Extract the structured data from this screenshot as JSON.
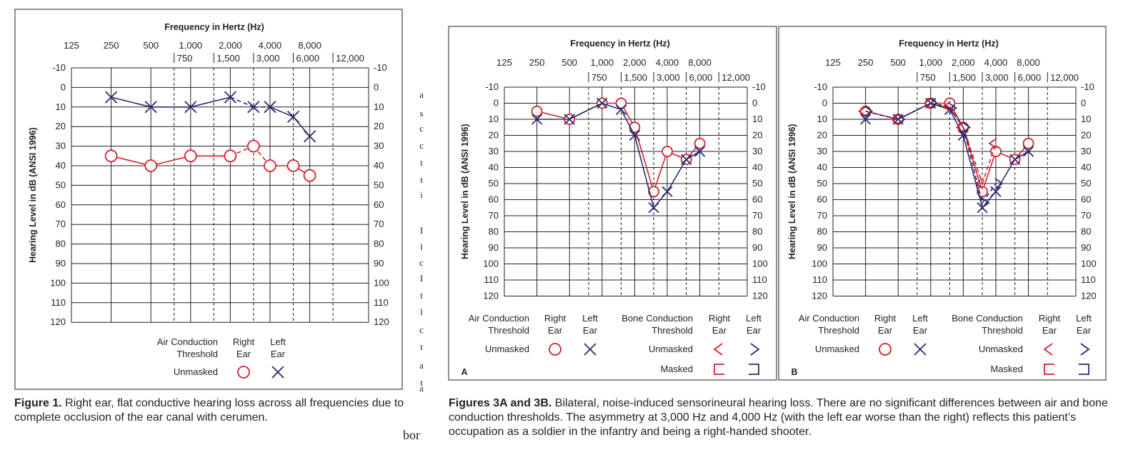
{
  "chart_data": [
    {
      "type": "line",
      "panel_label": "",
      "title": "Frequency in Hertz (Hz)",
      "ylabel": "Hearing Level in dB (ANSI 1996)",
      "x_top_ticks": [
        "125",
        "250",
        "500",
        "1,000",
        "2,000",
        "4,000",
        "8,000"
      ],
      "x_mid_ticks": [
        "750",
        "1,500",
        "3,000",
        "6,000",
        "12,000"
      ],
      "y_ticks": [
        "-10",
        "0",
        "10",
        "20",
        "30",
        "40",
        "50",
        "60",
        "70",
        "80",
        "90",
        "100",
        "110",
        "120"
      ],
      "ylim": [
        -10,
        120
      ],
      "y_inverted": true,
      "series": [
        {
          "color": "#d4202a",
          "marker": "circle",
          "x": [
            250,
            500,
            1000,
            2000,
            3000,
            4000,
            6000,
            8000
          ],
          "y": [
            35,
            40,
            35,
            35,
            30,
            40,
            40,
            45
          ],
          "dashed_from": [
            2000,
            4000
          ]
        },
        {
          "color": "#2b2c6e",
          "marker": "x",
          "x": [
            250,
            500,
            1000,
            2000,
            3000,
            4000,
            6000,
            8000
          ],
          "y": [
            5,
            10,
            10,
            5,
            10,
            10,
            15,
            25
          ],
          "dashed_from": [
            2000,
            4000
          ]
        }
      ],
      "legend": {
        "air_conduction": "Air Conduction",
        "threshold": "Threshold",
        "right": "Right",
        "left": "Left",
        "ear": "Ear",
        "unmasked": "Unmasked"
      }
    },
    {
      "type": "line",
      "panel_label": "A",
      "title": "Frequency in Hertz (Hz)",
      "ylabel": "Hearing Level in dB (ANSI 1996)",
      "x_top_ticks": [
        "125",
        "250",
        "500",
        "1,000",
        "2,000",
        "4,000",
        "8,000"
      ],
      "x_mid_ticks": [
        "750",
        "1,500",
        "3,000",
        "6,000",
        "12,000"
      ],
      "y_ticks": [
        "-10",
        "0",
        "10",
        "20",
        "30",
        "40",
        "50",
        "60",
        "70",
        "80",
        "90",
        "100",
        "110",
        "120"
      ],
      "ylim": [
        -10,
        120
      ],
      "y_inverted": true,
      "series": [
        {
          "color": "#d4202a",
          "marker": "circle",
          "x": [
            250,
            500,
            1000,
            1500,
            2000,
            3000,
            4000,
            6000,
            8000
          ],
          "y": [
            5,
            10,
            0,
            0,
            15,
            55,
            30,
            35,
            25
          ]
        },
        {
          "color": "#2b2c6e",
          "marker": "x",
          "x": [
            250,
            500,
            1000,
            1500,
            2000,
            3000,
            4000,
            6000,
            8000
          ],
          "y": [
            10,
            10,
            0,
            4,
            20,
            65,
            55,
            35,
            30
          ]
        }
      ],
      "legend": {
        "air_conduction": "Air Conduction",
        "bone_conduction": "Bone Conduction",
        "threshold": "Threshold",
        "right": "Right",
        "left": "Left",
        "ear": "Ear",
        "unmasked": "Unmasked",
        "masked": "Masked"
      }
    },
    {
      "type": "line",
      "panel_label": "B",
      "title": "Frequency in Hertz (Hz)",
      "ylabel": "Hearing Level in dB (ANSI 1996)",
      "x_top_ticks": [
        "125",
        "250",
        "500",
        "1,000",
        "2,000",
        "4,000",
        "8,000"
      ],
      "x_mid_ticks": [
        "750",
        "1,500",
        "3,000",
        "6,000",
        "12,000"
      ],
      "y_ticks": [
        "-10",
        "0",
        "10",
        "20",
        "30",
        "40",
        "50",
        "60",
        "70",
        "80",
        "90",
        "100",
        "110",
        "120"
      ],
      "ylim": [
        -10,
        120
      ],
      "y_inverted": true,
      "series": [
        {
          "color": "#d4202a",
          "marker": "circle",
          "x": [
            250,
            500,
            1000,
            1500,
            2000,
            3000,
            4000,
            6000,
            8000
          ],
          "y": [
            5,
            10,
            0,
            0,
            15,
            55,
            30,
            35,
            25
          ]
        },
        {
          "color": "#2b2c6e",
          "marker": "x",
          "x": [
            250,
            500,
            1000,
            1500,
            2000,
            3000,
            4000,
            6000,
            8000
          ],
          "y": [
            10,
            10,
            0,
            4,
            20,
            65,
            55,
            35,
            30
          ]
        },
        {
          "color": "#d4202a",
          "marker": "bone-right",
          "dashed": true,
          "x": [
            250,
            500,
            1000,
            1500,
            2000,
            3000,
            4000
          ],
          "y": [
            5,
            10,
            0,
            2,
            15,
            50,
            25
          ]
        },
        {
          "color": "#2b2c6e",
          "marker": "bone-left",
          "dashed": true,
          "x": [
            250,
            500,
            1000,
            1500,
            2000,
            3000,
            4000
          ],
          "y": [
            5,
            10,
            0,
            3,
            15,
            62,
            50
          ]
        }
      ],
      "legend": {
        "air_conduction": "Air Conduction",
        "bone_conduction": "Bone Conduction",
        "threshold": "Threshold",
        "right": "Right",
        "left": "Left",
        "ear": "Ear",
        "unmasked": "Unmasked",
        "masked": "Masked"
      }
    }
  ],
  "captions": {
    "fig1_label": "Figure 1.",
    "fig1_text": " Right ear, flat conductive hearing loss across all frequencies due to complete occlusion of the ear canal with cerumen.",
    "fig3_label": "Figures 3A and 3B.",
    "fig3_text": " Bilateral, noise-induced sensorineural hearing loss. There are no significant differences between air and bone conduction thresholds. The asymmetry at 3,000 Hz and 4,000 Hz (with the left ear worse than the right) reflects this patient’s occupation as a soldier in the infantry and being a right-handed shooter.",
    "bleed_text": "bor",
    "bleed_letters": [
      "a",
      "s",
      "c",
      "c",
      "t",
      "t",
      "i",
      "I",
      "l",
      "c",
      "I",
      "t",
      "l",
      "c",
      "t",
      "a",
      "t",
      "a"
    ]
  },
  "colors": {
    "right_ear": "#d4202a",
    "left_ear": "#2b2c6e",
    "ink": "#231f20"
  }
}
